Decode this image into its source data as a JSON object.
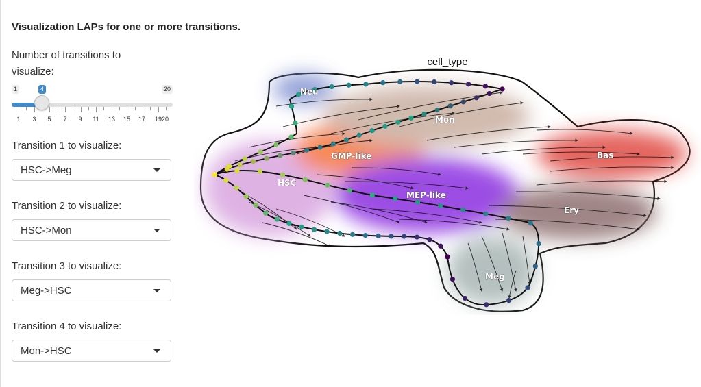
{
  "sidebar": {
    "heading": "Visualization LAPs for one or more transitions.",
    "slider": {
      "label": "Number of transitions to visualize:",
      "min_label": "1",
      "max_label": "20",
      "value_label": "4",
      "value": 4,
      "ticks": [
        "1",
        "3",
        "5",
        "7",
        "9",
        "11",
        "13",
        "15",
        "17",
        "1920"
      ],
      "accent_color": "#428bca"
    },
    "transitions": [
      {
        "label": "Transition 1 to visualize:",
        "value": "HSC->Meg"
      },
      {
        "label": "Transition 2 to visualize:",
        "value": "HSC->Mon"
      },
      {
        "label": "Transition 3 to visualize:",
        "value": "Meg->HSC"
      },
      {
        "label": "Transition 4 to visualize:",
        "value": "Mon->HSC"
      }
    ]
  },
  "plot": {
    "title": "cell_type",
    "cluster_labels": [
      "Neu",
      "Mon",
      "GMP-like",
      "HSC",
      "MEP-like",
      "Bas",
      "Ery",
      "Meg"
    ],
    "cluster_colors": {
      "HSC": "#d9a6e0",
      "GMP-like": "#f5763a",
      "MEP-like": "#8b2fe0",
      "Mon": "#c9aea0",
      "Neu": "#7f8fd0",
      "Bas": "#e04a43",
      "Ery": "#8f7070",
      "Meg": "#a7b6b4"
    },
    "path_colors": [
      "#440154",
      "#2c728e",
      "#22a884",
      "#fde725"
    ]
  }
}
